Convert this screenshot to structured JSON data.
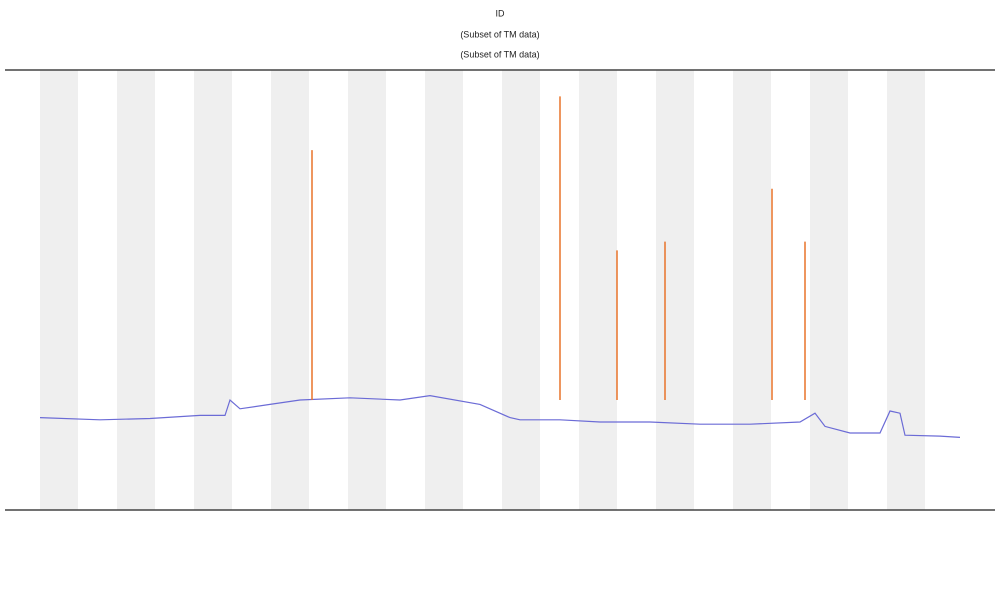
{
  "chart_data": {
    "type": "line",
    "title": "ID",
    "subtitles": [
      "(Subset of TM data)",
      "(Subset of TM data)"
    ],
    "xlim": [
      0,
      1000
    ],
    "ylim": [
      0,
      100
    ],
    "series": [
      {
        "color": "#6b6bd6",
        "x": [
          40,
          100,
          150,
          200,
          225,
          230,
          240,
          270,
          300,
          350,
          400,
          430,
          480,
          510,
          520,
          560,
          600,
          650,
          700,
          750,
          800,
          815,
          825,
          850,
          880,
          890,
          900,
          905,
          940,
          960
        ],
        "values": [
          21,
          20.5,
          20.8,
          21.5,
          21.5,
          25,
          23,
          24,
          25,
          25.5,
          25,
          26,
          24,
          21,
          20.5,
          20.5,
          20,
          20,
          19.5,
          19.5,
          20,
          22,
          19,
          17.5,
          17.5,
          22.5,
          22,
          17,
          16.8,
          16.5
        ]
      },
      {
        "color": "#e8742a",
        "style": "stem",
        "x": [
          312,
          560,
          617,
          665,
          772,
          805
        ],
        "values": [
          81.8,
          94,
          59,
          61,
          73,
          61
        ]
      }
    ]
  }
}
